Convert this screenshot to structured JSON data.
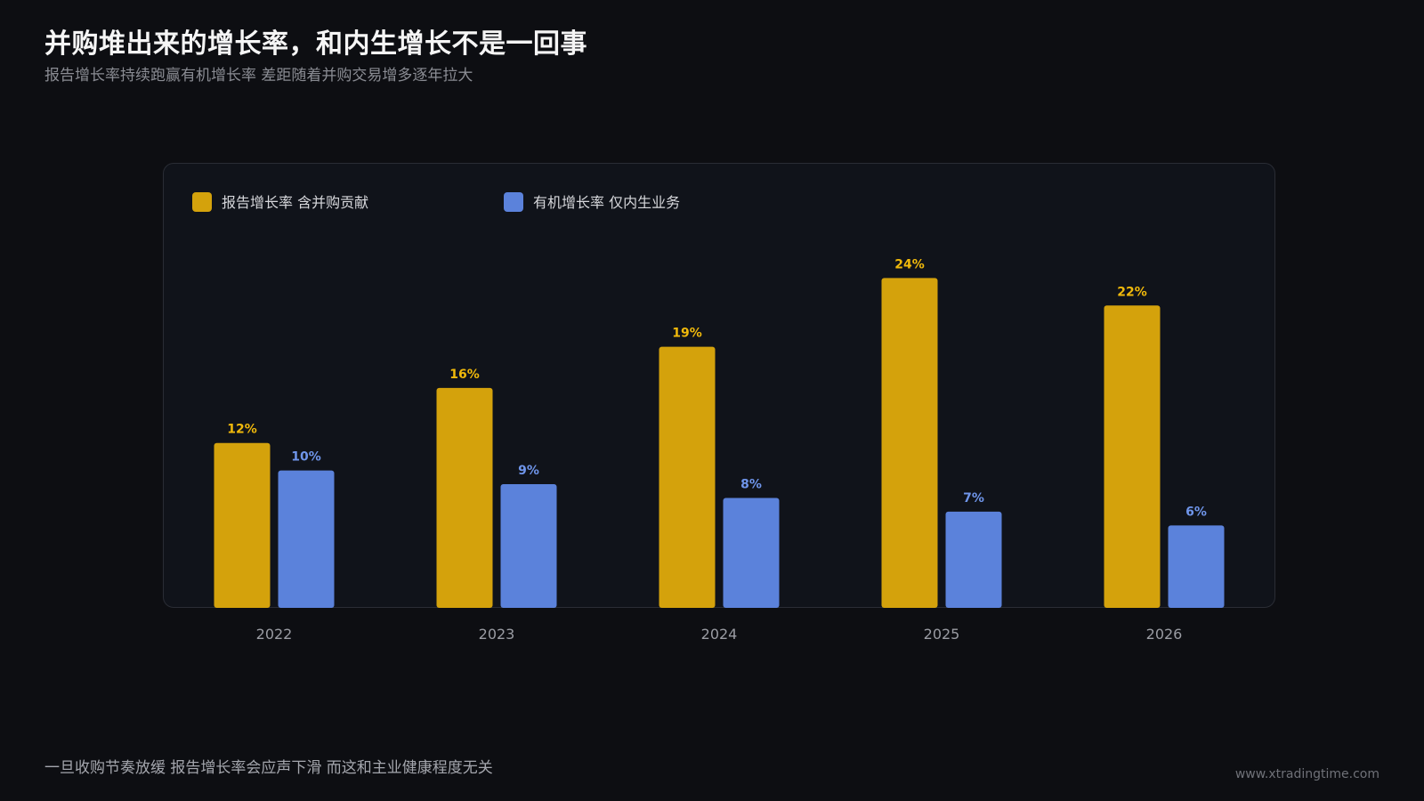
{
  "header": {
    "title": "并购堆出来的增长率，和内生增长不是一回事",
    "subtitle": "报告增长率持续跑赢有机增长率 差距随着并购交易增多逐年拉大"
  },
  "footer": {
    "note": "一旦收购节奏放缓 报告增长率会应声下滑 而这和主业健康程度无关",
    "watermark": "www.xtradingtime.com"
  },
  "colors": {
    "background": "#0d0e12",
    "panel": "#10131a",
    "reported": "#d4a20c",
    "organic": "#5b82db",
    "reported_label": "#f0b90b",
    "organic_label": "#6f95ea",
    "tick": "#9a9ca3"
  },
  "chart_data": {
    "type": "bar",
    "categories": [
      "2022",
      "2023",
      "2024",
      "2025",
      "2026"
    ],
    "series": [
      {
        "name": "报告增长率 含并购贡献",
        "values": [
          12,
          16,
          19,
          24,
          22
        ],
        "labels": [
          "12%",
          "16%",
          "19%",
          "24%",
          "22%"
        ],
        "color": "#d4a20c"
      },
      {
        "name": "有机增长率 仅内生业务",
        "values": [
          10,
          9,
          8,
          7,
          6
        ],
        "labels": [
          "10%",
          "9%",
          "8%",
          "7%",
          "6%"
        ],
        "color": "#5b82db"
      }
    ],
    "ylim": [
      0,
      25
    ],
    "grid": false,
    "legend": "top-left",
    "title": "",
    "xlabel": "",
    "ylabel": ""
  }
}
